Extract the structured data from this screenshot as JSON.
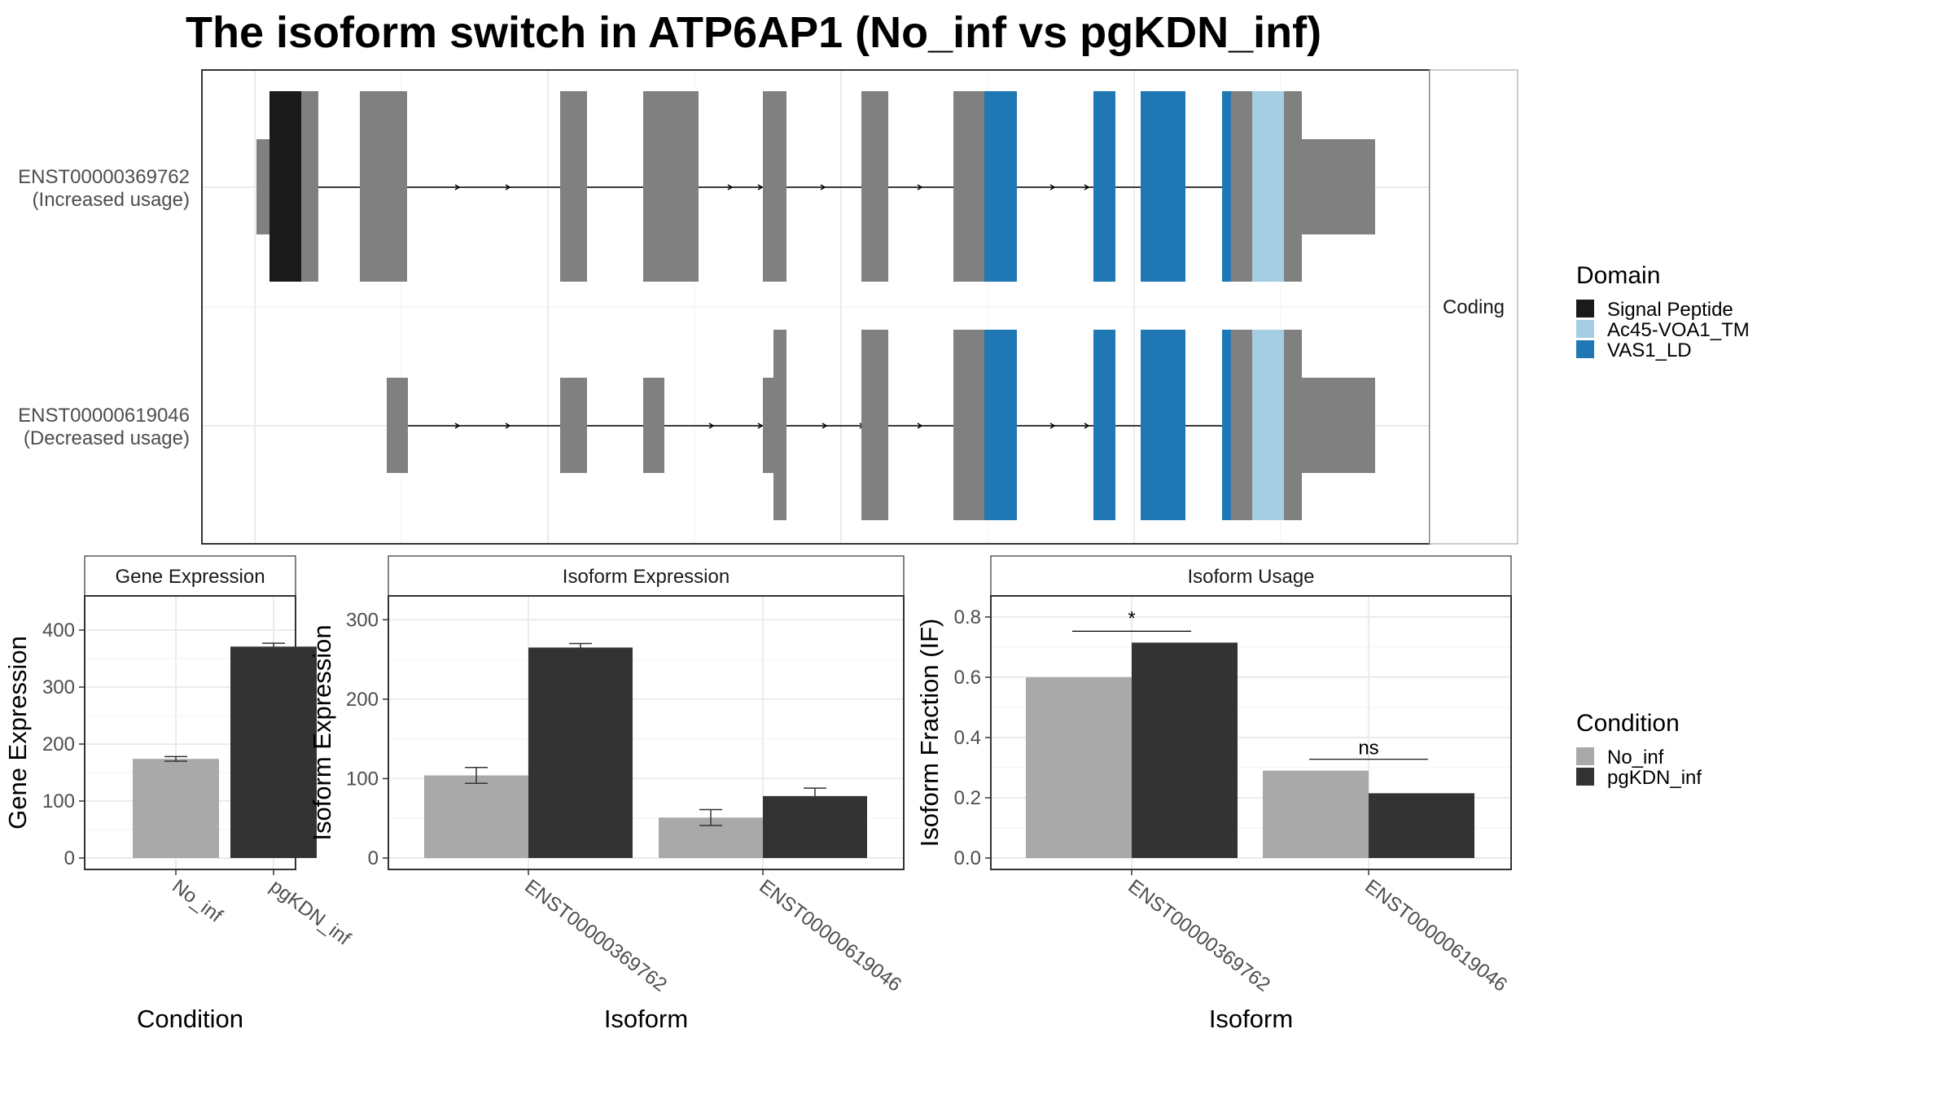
{
  "title": "The isoform switch in ATP6AP1 (No_inf vs pgKDN_inf)",
  "colors": {
    "exon": "#808080",
    "signal_peptide": "#1a1a1a",
    "ac45": "#a6cee3",
    "vas1": "#1f78b4",
    "no_inf": "#a9a9a9",
    "pgkdn_inf": "#333333",
    "grid": "#ebebeb",
    "panel_border": "#333333"
  },
  "structure": {
    "strip_label": "Coding",
    "isoforms": [
      {
        "id": "ENST00000369762",
        "usage": "(Increased usage)"
      },
      {
        "id": "ENST00000619046",
        "usage": "(Decreased usage)"
      }
    ]
  },
  "legend_domain": {
    "title": "Domain",
    "items": [
      {
        "label": "Signal Peptide",
        "color": "#1a1a1a"
      },
      {
        "label": "Ac45-VOA1_TM",
        "color": "#a6cee3"
      },
      {
        "label": "VAS1_LD",
        "color": "#1f78b4"
      }
    ]
  },
  "legend_condition": {
    "title": "Condition",
    "items": [
      {
        "label": "No_inf",
        "color": "#a9a9a9"
      },
      {
        "label": "pgKDN_inf",
        "color": "#333333"
      }
    ]
  },
  "chart_data": [
    {
      "type": "bar",
      "title": "Gene Expression",
      "xlabel": "Condition",
      "ylabel": "Gene Expression",
      "categories": [
        "No_inf",
        "pgKDN_inf"
      ],
      "values": [
        174,
        371
      ],
      "errors": [
        4,
        6
      ],
      "ylim": [
        0,
        460
      ],
      "yticks": [
        0,
        100,
        200,
        300,
        400
      ]
    },
    {
      "type": "bar",
      "title": "Isoform Expression",
      "xlabel": "Isoform",
      "ylabel": "Isoform Expression",
      "categories": [
        "ENST00000369762",
        "ENST00000619046"
      ],
      "series": [
        {
          "name": "No_inf",
          "values": [
            104,
            51
          ],
          "errors": [
            10,
            10
          ]
        },
        {
          "name": "pgKDN_inf",
          "values": [
            265,
            78
          ],
          "errors": [
            5,
            10
          ]
        }
      ],
      "ylim": [
        0,
        330
      ],
      "yticks": [
        0,
        100,
        200,
        300
      ]
    },
    {
      "type": "bar",
      "title": "Isoform Usage",
      "xlabel": "Isoform",
      "ylabel": "Isoform Fraction (IF)",
      "categories": [
        "ENST00000369762",
        "ENST00000619046"
      ],
      "series": [
        {
          "name": "No_inf",
          "values": [
            0.6,
            0.29
          ]
        },
        {
          "name": "pgKDN_inf",
          "values": [
            0.715,
            0.215
          ]
        }
      ],
      "significance": [
        "*",
        "ns"
      ],
      "ylim": [
        0,
        0.87
      ],
      "yticks": [
        "0.0",
        "0.2",
        "0.4",
        "0.6",
        "0.8"
      ]
    }
  ]
}
